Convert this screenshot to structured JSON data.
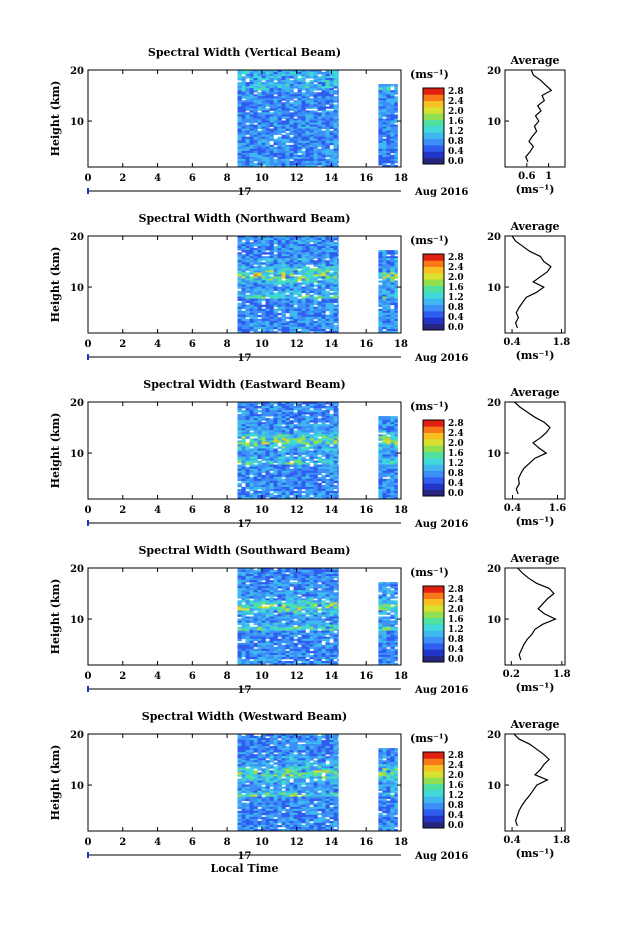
{
  "xlabel": "Local Time",
  "ylabel": "Height (km)",
  "unit": "(ms⁻¹)",
  "avg_title": "Average",
  "avg_xlabel": "(ms⁻¹)",
  "date_day": "17",
  "date_label": "Aug 2016",
  "x_ticks": [
    0,
    2,
    4,
    6,
    8,
    10,
    12,
    14,
    16,
    18
  ],
  "y_ticks": [
    10,
    20
  ],
  "cbar_ticks": [
    "0.0",
    "0.4",
    "0.8",
    "1.2",
    "1.6",
    "2.0",
    "2.4",
    "2.8"
  ],
  "colors": {
    "scale": [
      "#262680",
      "#2233c8",
      "#2f5df0",
      "#3c8ef8",
      "#3fb8f0",
      "#40d8d8",
      "#50e0a0",
      "#90e050",
      "#d8e030",
      "#f8c020",
      "#f87818",
      "#e02010"
    ],
    "line": "#000000"
  },
  "chart_data": [
    {
      "type": "heatmap",
      "title": "Spectral Width (Vertical Beam)",
      "xlim": [
        0,
        18
      ],
      "ylim": [
        1,
        20
      ],
      "data_blocks": [
        [
          8.6,
          14.4
        ],
        [
          16.7,
          17.8
        ]
      ],
      "avg_xlim": [
        0.2,
        1.3
      ],
      "avg_ticks": [
        0.6,
        1.0
      ],
      "average_profile": [
        [
          0.62,
          2
        ],
        [
          0.58,
          3
        ],
        [
          0.66,
          4
        ],
        [
          0.72,
          5
        ],
        [
          0.64,
          6
        ],
        [
          0.7,
          7
        ],
        [
          0.78,
          8
        ],
        [
          0.74,
          9
        ],
        [
          0.82,
          10
        ],
        [
          0.76,
          11
        ],
        [
          0.86,
          12
        ],
        [
          0.8,
          13
        ],
        [
          0.92,
          14
        ],
        [
          0.88,
          15
        ],
        [
          1.05,
          16
        ],
        [
          0.95,
          17
        ],
        [
          0.85,
          18
        ],
        [
          0.72,
          19
        ],
        [
          0.68,
          20
        ]
      ]
    },
    {
      "type": "heatmap",
      "title": "Spectral Width (Northward Beam)",
      "xlim": [
        0,
        18
      ],
      "ylim": [
        1,
        20
      ],
      "data_blocks": [
        [
          8.6,
          14.4
        ],
        [
          16.7,
          17.8
        ]
      ],
      "avg_xlim": [
        0.2,
        1.9
      ],
      "avg_ticks": [
        0.4,
        1.8
      ],
      "average_profile": [
        [
          0.55,
          2
        ],
        [
          0.5,
          3
        ],
        [
          0.58,
          4
        ],
        [
          0.52,
          5
        ],
        [
          0.6,
          6
        ],
        [
          0.7,
          7
        ],
        [
          0.8,
          8
        ],
        [
          1.1,
          9
        ],
        [
          1.3,
          10
        ],
        [
          1.0,
          11
        ],
        [
          1.2,
          12
        ],
        [
          1.4,
          13
        ],
        [
          1.5,
          14
        ],
        [
          1.3,
          15
        ],
        [
          1.2,
          16
        ],
        [
          0.9,
          17
        ],
        [
          0.7,
          18
        ],
        [
          0.5,
          19
        ],
        [
          0.4,
          20
        ]
      ]
    },
    {
      "type": "heatmap",
      "title": "Spectral Width (Eastward Beam)",
      "xlim": [
        0,
        18
      ],
      "ylim": [
        1,
        20
      ],
      "data_blocks": [
        [
          8.6,
          14.4
        ],
        [
          16.7,
          17.8
        ]
      ],
      "avg_xlim": [
        0.2,
        1.8
      ],
      "avg_ticks": [
        0.4,
        1.6
      ],
      "average_profile": [
        [
          0.55,
          2
        ],
        [
          0.5,
          3
        ],
        [
          0.58,
          4
        ],
        [
          0.56,
          5
        ],
        [
          0.62,
          6
        ],
        [
          0.7,
          7
        ],
        [
          0.85,
          8
        ],
        [
          1.0,
          9
        ],
        [
          1.3,
          10
        ],
        [
          1.1,
          11
        ],
        [
          0.95,
          12
        ],
        [
          1.15,
          13
        ],
        [
          1.3,
          14
        ],
        [
          1.4,
          15
        ],
        [
          1.25,
          16
        ],
        [
          1.0,
          17
        ],
        [
          0.8,
          18
        ],
        [
          0.6,
          19
        ],
        [
          0.45,
          20
        ]
      ]
    },
    {
      "type": "heatmap",
      "title": "Spectral Width (Southward Beam)",
      "xlim": [
        0,
        18
      ],
      "ylim": [
        1,
        20
      ],
      "data_blocks": [
        [
          8.6,
          14.4
        ],
        [
          16.7,
          17.8
        ]
      ],
      "avg_xlim": [
        0.0,
        1.9
      ],
      "avg_ticks": [
        0.2,
        1.8
      ],
      "average_profile": [
        [
          0.5,
          2
        ],
        [
          0.45,
          3
        ],
        [
          0.52,
          4
        ],
        [
          0.6,
          5
        ],
        [
          0.7,
          6
        ],
        [
          0.85,
          7
        ],
        [
          0.95,
          8
        ],
        [
          1.2,
          9
        ],
        [
          1.6,
          10
        ],
        [
          1.25,
          11
        ],
        [
          1.05,
          12
        ],
        [
          1.2,
          13
        ],
        [
          1.35,
          14
        ],
        [
          1.55,
          15
        ],
        [
          1.4,
          16
        ],
        [
          1.0,
          17
        ],
        [
          0.75,
          18
        ],
        [
          0.55,
          19
        ],
        [
          0.4,
          20
        ]
      ]
    },
    {
      "type": "heatmap",
      "title": "Spectral Width (Westward Beam)",
      "xlim": [
        0,
        18
      ],
      "ylim": [
        1,
        20
      ],
      "data_blocks": [
        [
          8.6,
          14.4
        ],
        [
          16.7,
          17.8
        ]
      ],
      "avg_xlim": [
        0.2,
        1.9
      ],
      "avg_ticks": [
        0.4,
        1.8
      ],
      "average_profile": [
        [
          0.55,
          2
        ],
        [
          0.5,
          3
        ],
        [
          0.55,
          4
        ],
        [
          0.6,
          5
        ],
        [
          0.68,
          6
        ],
        [
          0.78,
          7
        ],
        [
          0.9,
          8
        ],
        [
          1.0,
          9
        ],
        [
          1.1,
          10
        ],
        [
          1.4,
          11
        ],
        [
          1.05,
          12
        ],
        [
          1.2,
          13
        ],
        [
          1.3,
          14
        ],
        [
          1.45,
          15
        ],
        [
          1.3,
          16
        ],
        [
          1.1,
          17
        ],
        [
          0.9,
          18
        ],
        [
          0.6,
          19
        ],
        [
          0.45,
          20
        ]
      ]
    }
  ]
}
